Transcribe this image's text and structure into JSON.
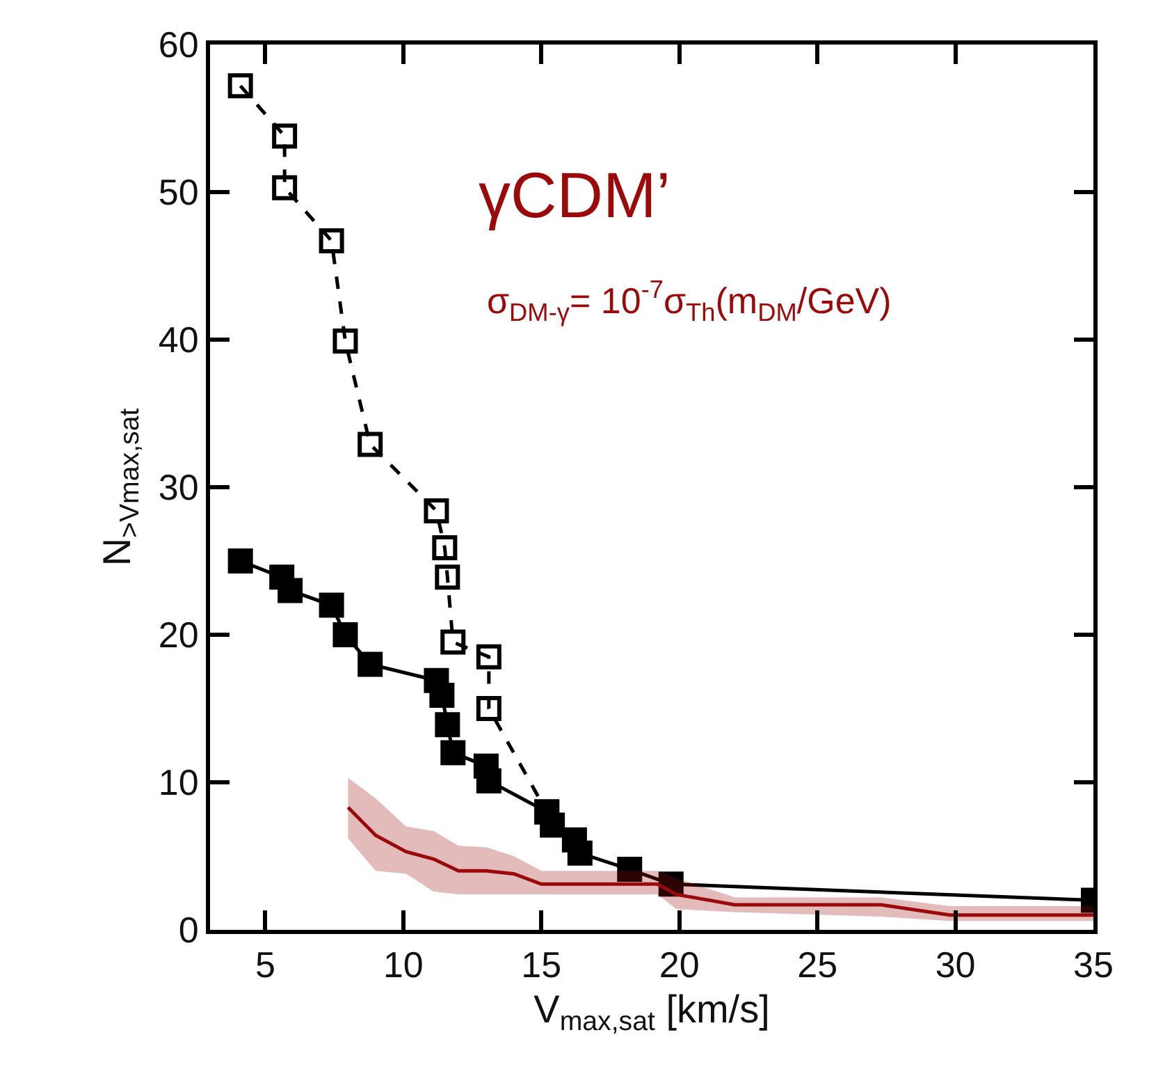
{
  "chart_data": {
    "type": "line",
    "xlabel": "V$_{max,sat}$ [km/s]",
    "ylabel": "N$_{>Vmax,sat}$",
    "annotations": [
      "γCDM’",
      "σ$_{DM-γ}$= 10$^{-7}$σ$_{Th}$(m$_{DM}$/GeV)"
    ],
    "xlim": [
      3,
      35
    ],
    "xticks": [
      5,
      10,
      15,
      20,
      25,
      30,
      35
    ],
    "ylim": [
      0,
      60
    ],
    "yticks": [
      0,
      10,
      20,
      30,
      40,
      50,
      60
    ],
    "grid": false,
    "series": [
      {
        "color": "#000000",
        "marker": "square-open",
        "line_style": "dashed",
        "x": [
          4.1,
          5.7,
          5.7,
          7.4,
          7.9,
          8.8,
          11.2,
          11.5,
          11.6,
          11.8,
          13.1,
          13.1,
          15.2
        ],
        "values": [
          57.2,
          53.8,
          50.3,
          46.7,
          39.9,
          32.9,
          28.4,
          25.9,
          23.9,
          19.5,
          18.5,
          15,
          8
        ]
      },
      {
        "color": "#000000",
        "marker": "square",
        "line_style": "solid",
        "x": [
          4.1,
          5.6,
          5.9,
          7.4,
          7.9,
          8.8,
          11.2,
          11.4,
          11.6,
          11.8,
          13,
          13.1,
          15.2,
          15.4,
          16.2,
          16.4,
          18.2,
          19.7,
          35
        ],
        "values": [
          25,
          23.9,
          23,
          22,
          20,
          18,
          16.9,
          15.9,
          13.9,
          12,
          11.1,
          10.1,
          8,
          7.1,
          6.1,
          5.2,
          4.1,
          3.1,
          2
        ]
      },
      {
        "color": "#9b0a0a",
        "marker": "none",
        "line_style": "solid",
        "x": [
          8,
          9,
          10.1,
          11.1,
          12,
          13,
          14,
          15,
          19.2,
          19.9,
          22,
          27.3,
          29.8,
          35
        ],
        "values": [
          8.3,
          6.4,
          5.3,
          4.8,
          4,
          4,
          3.8,
          3.1,
          3.1,
          2.4,
          1.7,
          1.7,
          1,
          1
        ],
        "upper": [
          10.3,
          8.9,
          7,
          6.7,
          5.7,
          5.6,
          5,
          4,
          4,
          3.5,
          2.2,
          2.2,
          1.6,
          1.6
        ],
        "lower": [
          6.2,
          4,
          3.8,
          2.6,
          2.4,
          2.4,
          2.4,
          2.4,
          2.4,
          1.4,
          1.2,
          0.9,
          0.6,
          0.6
        ]
      }
    ]
  }
}
